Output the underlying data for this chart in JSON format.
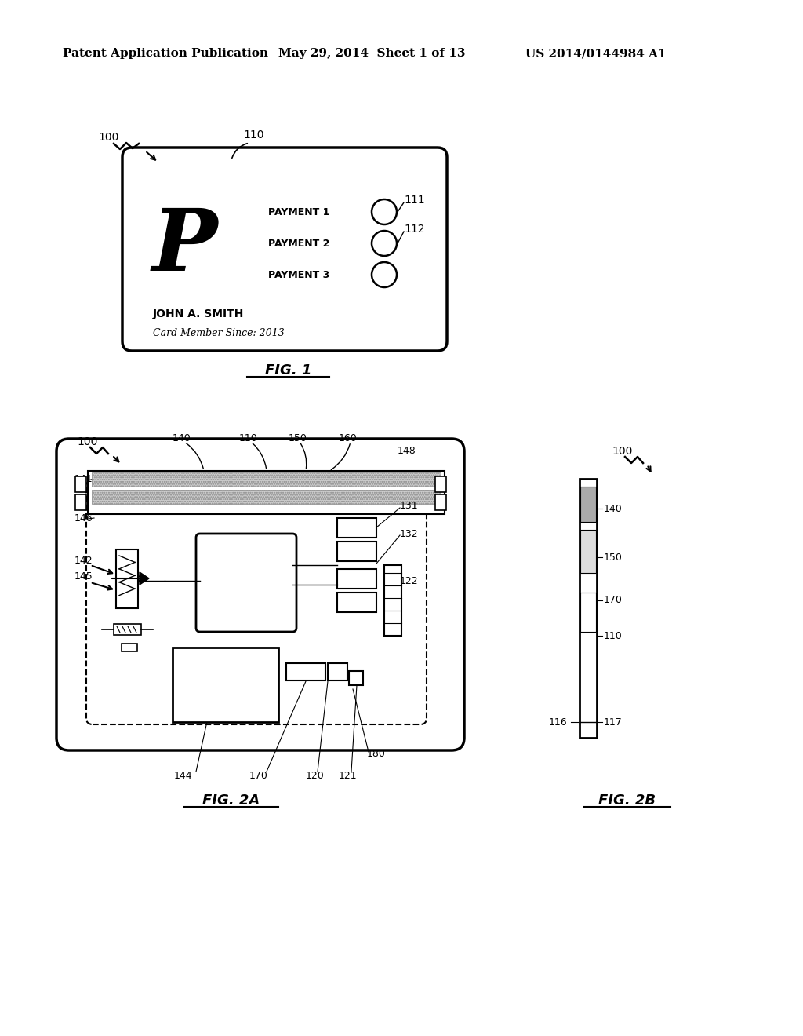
{
  "bg_color": "#ffffff",
  "header_left": "Patent Application Publication",
  "header_mid": "May 29, 2014  Sheet 1 of 13",
  "header_right": "US 2014/0144984 A1",
  "fig1_label": "FIG. 1",
  "fig2a_label": "FIG. 2A",
  "fig2b_label": "FIG. 2B",
  "payments": [
    "PAYMENT 1",
    "PAYMENT 2",
    "PAYMENT 3"
  ],
  "name_text": "JOHN A. SMITH",
  "member_text": "Card Member Since: 2013",
  "logo_text": "P"
}
